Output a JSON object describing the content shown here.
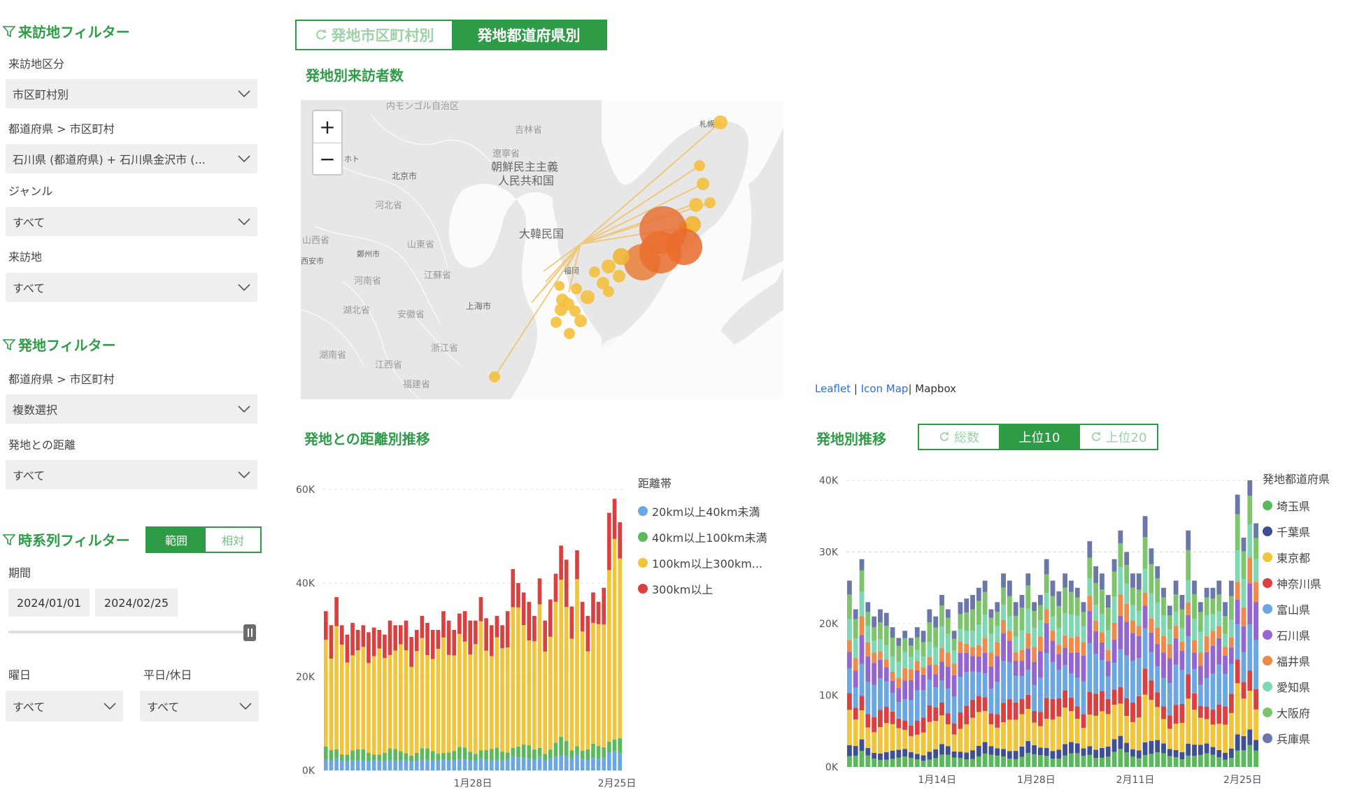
{
  "visit_filter": {
    "title": "来訪地フィルター",
    "area_label": "来訪地区分",
    "area_value": "市区町村別",
    "pref_city_label": "都道府県 > 市区町村",
    "pref_city_value": "石川県 (都道府県) + 石川県金沢市 (...",
    "genre_label": "ジャンル",
    "genre_value": "すべて",
    "place_label": "来訪地",
    "place_value": "すべて"
  },
  "origin_filter": {
    "title": "発地フィルター",
    "pref_city_label": "都道府県 > 市区町村",
    "pref_city_value": "複数選択",
    "distance_label": "発地との距離",
    "distance_value": "すべて"
  },
  "time_filter": {
    "title": "時系列フィルター",
    "mode_range": "範囲",
    "mode_relative": "相対",
    "period_label": "期間",
    "date_start": "2024/01/01",
    "date_end": "2024/02/25",
    "slider_value": 1.0,
    "weekday_label": "曜日",
    "weekday_value": "すべて",
    "holiday_label": "平日/休日",
    "holiday_value": "すべて"
  },
  "top_tabs": {
    "city": "発地市区町村別",
    "pref": "発地都道府県別",
    "active": "pref"
  },
  "map_section": {
    "title": "発地別来訪者数",
    "zoom_in": "+",
    "zoom_out": "−",
    "labels": [
      "内モンゴル自治区",
      "吉林省",
      "朝鮮民主主義",
      "人民共和国",
      "大韓民国",
      "遼寧省",
      "北京市",
      "河北省",
      "山東省",
      "山西省",
      "河南省",
      "江蘇省",
      "湖北省",
      "安徽省",
      "上海市",
      "浙江省",
      "江西省",
      "湖南省",
      "福建省",
      "鄭州市",
      "札幌",
      "福岡",
      "ホト",
      "西安市"
    ],
    "attribution": {
      "leaflet": "Leaflet",
      "sep1": " | ",
      "iconmap": "Icon Map",
      "sep2": "| ",
      "mapbox": "Mapbox"
    }
  },
  "distance_chart": {
    "title": "発地との距離別推移",
    "legend_title": "距離帯",
    "chart_data": {
      "type": "bar",
      "stacked": true,
      "x_ticks": [
        "1月28日",
        "2月25日"
      ],
      "y_ticks": [
        "60K",
        "40K",
        "20K",
        "0K"
      ],
      "ylim": [
        0,
        60000
      ],
      "series": [
        {
          "name": "20km以上40km未満",
          "color": "#6aa7e3"
        },
        {
          "name": "40km以上100km未満",
          "color": "#5cb85c"
        },
        {
          "name": "100km以上300km...",
          "color": "#f0c53b"
        },
        {
          "name": "300km以上",
          "color": "#d94040"
        }
      ],
      "totals": [
        34000,
        31000,
        37000,
        31000,
        29000,
        31500,
        30000,
        31000,
        29500,
        30500,
        30000,
        29000,
        32000,
        31000,
        31000,
        32000,
        28500,
        30000,
        33000,
        31500,
        30000,
        30000,
        34000,
        32000,
        30000,
        33500,
        34000,
        32000,
        32000,
        37000,
        32500,
        31000,
        33000,
        31000,
        34000,
        43000,
        40000,
        38000,
        36000,
        33000,
        41000,
        32000,
        36500,
        42000,
        48000,
        45000,
        35000,
        47000,
        36000,
        33000,
        38000,
        36000,
        39000,
        55000,
        58000,
        53000
      ]
    }
  },
  "origin_chart": {
    "title": "発地別推移",
    "tabs": {
      "total": "総数",
      "top10": "上位10",
      "top20": "上位20",
      "active": "top10"
    },
    "legend_title": "発地都道府県",
    "chart_data": {
      "type": "bar",
      "stacked": true,
      "x_ticks": [
        "1月14日",
        "1月28日",
        "2月11日",
        "2月25日"
      ],
      "y_ticks": [
        "40K",
        "30K",
        "20K",
        "10K",
        "0K"
      ],
      "ylim": [
        0,
        40000
      ],
      "series": [
        {
          "name": "埼玉県",
          "color": "#5cb85c"
        },
        {
          "name": "千葉県",
          "color": "#3f4f96"
        },
        {
          "name": "東京都",
          "color": "#f0c53b"
        },
        {
          "name": "神奈川県",
          "color": "#d94040"
        },
        {
          "name": "富山県",
          "color": "#6aa7e3"
        },
        {
          "name": "石川県",
          "color": "#9466d2"
        },
        {
          "name": "福井県",
          "color": "#f08a4b"
        },
        {
          "name": "愛知県",
          "color": "#7fd8b4"
        },
        {
          "name": "大阪府",
          "color": "#7ec46c"
        },
        {
          "name": "兵庫県",
          "color": "#6b77a8"
        }
      ],
      "totals": [
        26000,
        22000,
        29000,
        23000,
        21000,
        22000,
        21500,
        19500,
        18000,
        19000,
        18000,
        19500,
        19000,
        22000,
        21000,
        24000,
        22000,
        19000,
        23000,
        23500,
        24000,
        25000,
        26000,
        22000,
        23000,
        27000,
        26000,
        23000,
        24000,
        27000,
        23000,
        24000,
        29000,
        26000,
        24500,
        27000,
        26000,
        25000,
        23000,
        31500,
        28000,
        27000,
        24000,
        29000,
        33000,
        30000,
        27000,
        27000,
        35000,
        30500,
        28000,
        25000,
        22500,
        26000,
        24000,
        33000,
        26000,
        23000,
        25000,
        25000,
        26000,
        23000,
        26000,
        38000,
        32000,
        40000,
        34000
      ]
    }
  }
}
